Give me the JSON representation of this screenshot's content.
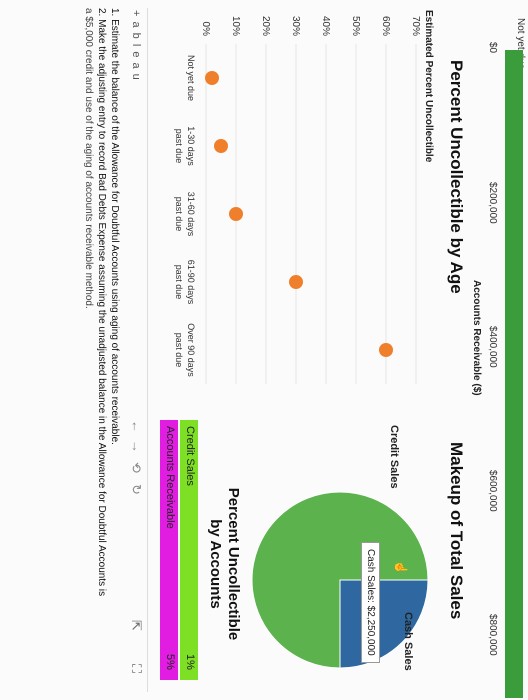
{
  "top_bar": {
    "category": "Not yet due",
    "axis_title": "Accounts Receivable ($)",
    "ticks": [
      "$0",
      "$200,000",
      "$400,000",
      "$600,000",
      "$800,000"
    ],
    "bar_color": "#3a9c3a"
  },
  "chart_data": [
    {
      "type": "bar",
      "title": "",
      "xlabel": "Accounts Receivable ($)",
      "categories": [
        "Not yet due"
      ],
      "values": [
        900000
      ],
      "xlim": [
        0,
        900000
      ],
      "ticks": [
        0,
        200000,
        400000,
        600000,
        800000
      ]
    },
    {
      "type": "scatter",
      "title": "Percent Uncollectible by Age",
      "ylabel": "Estimated Percent Uncollectible",
      "categories": [
        "Not yet due",
        "1-30 days past due",
        "31-60 days past due",
        "61-90 days past due",
        "Over 90 days past due"
      ],
      "values": [
        2,
        5,
        10,
        30,
        60
      ],
      "ylim": [
        0,
        70
      ],
      "yticks": [
        "0%",
        "10%",
        "20%",
        "30%",
        "40%",
        "50%",
        "60%",
        "70%"
      ],
      "grid": true,
      "point_color": "#ef7f2b"
    },
    {
      "type": "pie",
      "title": "Makeup of Total Sales",
      "slices": [
        {
          "label": "Cash Sales",
          "value": 2250000,
          "color": "#2f68a0"
        },
        {
          "label": "Credit Sales",
          "value": 6750000,
          "color": "#5cb34e"
        }
      ],
      "tooltip": "Cash Sales: $2,250,000"
    }
  ],
  "scatter_titles": {
    "title": "Percent Uncollectible by Age",
    "ylabel": "Estimated Percent Uncollectible",
    "x_labels": [
      {
        "l1": "Not yet due",
        "l2": ""
      },
      {
        "l1": "1-30 days",
        "l2": "past due"
      },
      {
        "l1": "31-60 days",
        "l2": "past due"
      },
      {
        "l1": "61-90 days",
        "l2": "past due"
      },
      {
        "l1": "Over 90 days",
        "l2": "past due"
      }
    ]
  },
  "pie": {
    "title": "Makeup of Total Sales",
    "cash_label": "Cash Sales",
    "credit_label": "Credit Sales",
    "tooltip": "Cash Sales: $2,250,000"
  },
  "accounts": {
    "title_line1": "Percent Uncollectible",
    "title_line2": "by Accounts",
    "rows": [
      {
        "label": "Credit Sales",
        "value": "1%",
        "color": "#7ee024"
      },
      {
        "label": "Accounts Receivable",
        "value": "5%",
        "color": "#e11de1"
      }
    ]
  },
  "toolbar": {
    "logo": "+ a b l e a u",
    "undo": "←",
    "redo": "→",
    "revert": "⟲",
    "refresh": "↻",
    "share": "⇱",
    "fullscreen": "⛶"
  },
  "instructions": {
    "line1": "1. Estimate the balance of the Allowance for Doubtful Accounts using aging of accounts receivable.",
    "line2": "2. Make the adjusting entry to record Bad Debts Expense assuming the unadjusted balance in the Allowance for Doubtful Accounts is",
    "line3": "a $5,000 credit and use of the aging of accounts receivable method."
  }
}
